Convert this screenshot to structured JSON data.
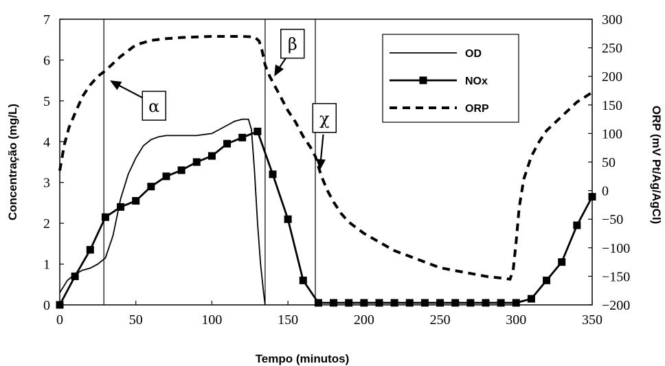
{
  "chart_data": {
    "type": "line",
    "xlabel": "Tempo (minutos)",
    "ylabel_left": "Concentração (mg/L)",
    "ylabel_right": "ORP (mV Pt/Ag/AgCl)",
    "xlim": [
      0,
      350
    ],
    "ylim_left": [
      0,
      7
    ],
    "ylim_right": [
      -200,
      300
    ],
    "x_ticks": [
      "0",
      "50",
      "100",
      "150",
      "200",
      "250",
      "300",
      "350"
    ],
    "y_left_ticks": [
      "0",
      "1",
      "2",
      "3",
      "4",
      "5",
      "6",
      "7"
    ],
    "y_right_ticks": [
      "-200",
      "-150",
      "-100",
      "-50",
      "0",
      "50",
      "100",
      "150",
      "200",
      "250",
      "300"
    ],
    "grid": false,
    "legend_position": "top-right",
    "vertical_lines_x": [
      29,
      135,
      168
    ],
    "annotations": [
      {
        "label": "α",
        "x": 62,
        "y_left": 4.88,
        "arrow_to_x": 33,
        "arrow_to_y_left": 5.5
      },
      {
        "label": "β",
        "x": 153,
        "y_left": 6.4,
        "arrow_to_x": 141,
        "arrow_to_y_left": 5.6
      },
      {
        "label": "χ",
        "x": 174,
        "y_left": 4.58,
        "arrow_to_x": 171,
        "arrow_to_y_left": 3.3
      }
    ],
    "series": [
      {
        "name": "OD",
        "axis": "left",
        "style": "solid",
        "x": [
          0,
          5,
          10,
          15,
          20,
          25,
          30,
          35,
          40,
          45,
          50,
          55,
          60,
          65,
          70,
          80,
          90,
          100,
          105,
          110,
          115,
          120,
          124,
          126,
          128,
          130,
          132,
          134,
          135
        ],
        "y": [
          0.3,
          0.6,
          0.75,
          0.85,
          0.9,
          1.0,
          1.15,
          1.7,
          2.6,
          3.2,
          3.6,
          3.9,
          4.05,
          4.12,
          4.15,
          4.15,
          4.15,
          4.2,
          4.3,
          4.4,
          4.5,
          4.55,
          4.55,
          4.3,
          3.3,
          2.0,
          1.0,
          0.3,
          0.0
        ]
      },
      {
        "name": "NOx",
        "axis": "left",
        "style": "solid-square",
        "x": [
          0,
          10,
          20,
          30,
          40,
          50,
          60,
          70,
          80,
          90,
          100,
          110,
          120,
          130,
          140,
          150,
          160,
          170,
          180,
          190,
          200,
          210,
          220,
          230,
          240,
          250,
          260,
          270,
          280,
          290,
          300,
          310,
          320,
          330,
          340,
          350
        ],
        "y": [
          0.0,
          0.7,
          1.35,
          2.15,
          2.4,
          2.55,
          2.9,
          3.15,
          3.3,
          3.5,
          3.65,
          3.95,
          4.1,
          4.25,
          3.2,
          2.1,
          0.6,
          0.05,
          0.05,
          0.05,
          0.05,
          0.05,
          0.05,
          0.05,
          0.05,
          0.05,
          0.05,
          0.05,
          0.05,
          0.05,
          0.05,
          0.15,
          0.6,
          1.05,
          1.95,
          2.65
        ]
      },
      {
        "name": "ORP",
        "axis": "right",
        "style": "dashed",
        "x": [
          0,
          3,
          6,
          10,
          15,
          20,
          25,
          30,
          40,
          50,
          60,
          70,
          80,
          90,
          100,
          110,
          120,
          128,
          131,
          133,
          135,
          138,
          140,
          145,
          150,
          155,
          160,
          165,
          168,
          172,
          176,
          180,
          185,
          190,
          200,
          210,
          220,
          230,
          240,
          250,
          260,
          270,
          280,
          290,
          296,
          298,
          300,
          302,
          305,
          310,
          315,
          320,
          330,
          340,
          350
        ],
        "y": [
          35,
          80,
          110,
          135,
          165,
          185,
          200,
          210,
          235,
          255,
          263,
          266,
          268,
          269,
          270,
          270,
          270,
          269,
          262,
          245,
          220,
          200,
          190,
          165,
          140,
          120,
          95,
          75,
          60,
          25,
          0,
          -20,
          -40,
          -55,
          -75,
          -90,
          -105,
          -115,
          -125,
          -135,
          -140,
          -145,
          -150,
          -153,
          -155,
          -140,
          -90,
          -30,
          20,
          60,
          85,
          105,
          130,
          155,
          172
        ]
      }
    ]
  }
}
